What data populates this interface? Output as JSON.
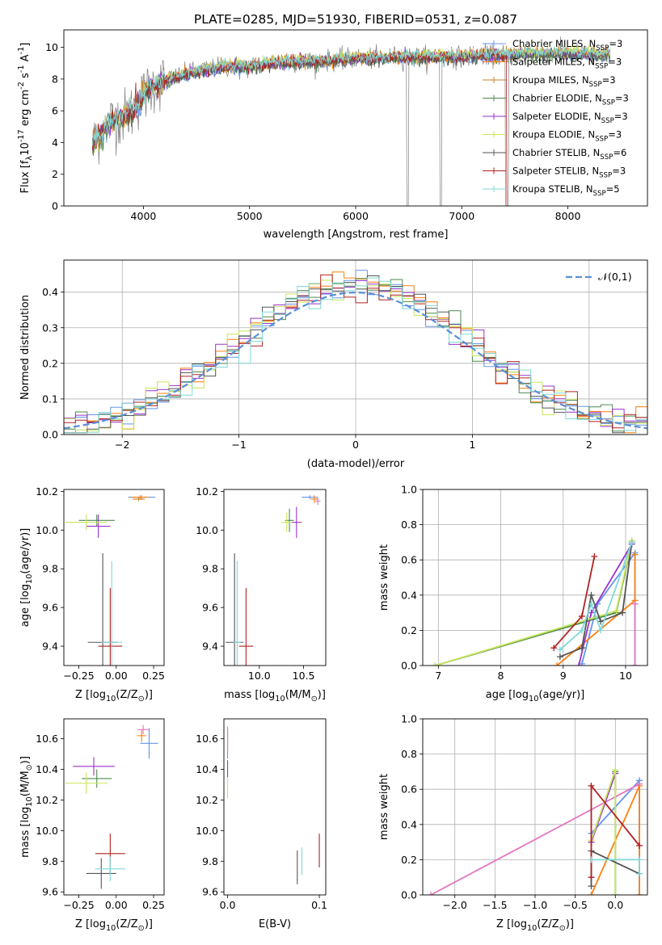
{
  "figure": {
    "title": "PLATE=0285, MJD=51930, FIBERID=0531, z=0.087"
  },
  "colors": {
    "chabrier_miles": "#6495ed",
    "salpeter_miles": "#ff7f0e",
    "kroupa_miles": "#c8812a",
    "chabrier_elodie": "#4f8a4f",
    "salpeter_elodie": "#9932cc",
    "kroupa_elodie": "#c8e65a",
    "chabrier_stelib": "#555555",
    "salpeter_stelib": "#b22222",
    "kroupa_stelib": "#7fd8d8",
    "data": "#808080",
    "gaussian": "#5b8fd6",
    "pink": "#e377c2"
  },
  "chart_data": [
    {
      "id": "spectrum",
      "type": "line",
      "xlabel": "wavelength [Angstrom, rest frame]",
      "ylabel": "Flux [f$_\\lambda$10$^{-17}$ erg cm$^{-2}$ s$^{-1}$ A$^{-1}$]",
      "xlim": [
        3250,
        8750
      ],
      "ylim": [
        0,
        11.1
      ],
      "xticks": [
        "4000",
        "5000",
        "6000",
        "7000",
        "8000"
      ],
      "yticks": [
        "0",
        "2",
        "4",
        "6",
        "8",
        "10"
      ],
      "legend": {
        "placement": "top-right",
        "entries": [
          "Chabrier MILES, N$_{SSP}$=3",
          "Salpeter MILES, N$_{SSP}$=3",
          "Kroupa MILES, N$_{SSP}$=3",
          "Chabrier ELODIE, N$_{SSP}$=3",
          "Salpeter ELODIE, N$_{SSP}$=3",
          "Kroupa ELODIE, N$_{SSP}$=3",
          "Chabrier STELIB, N$_{SSP}$=6",
          "Salpeter STELIB, N$_{SSP}$=3",
          "Kroupa STELIB, N$_{SSP}$=5"
        ]
      },
      "continuum": {
        "x": [
          3500,
          3600,
          3700,
          3800,
          3900,
          4000,
          4100,
          4200,
          4400,
          4600,
          4800,
          5000,
          5200,
          5400,
          5600,
          5800,
          6000,
          6200,
          6400,
          6600,
          6800,
          7000,
          7200,
          7400,
          7600,
          7800,
          8000,
          8200,
          8400
        ],
        "y": [
          3.7,
          4.6,
          5.4,
          5.6,
          6.0,
          7.0,
          7.6,
          7.9,
          8.3,
          8.6,
          8.8,
          8.8,
          9.0,
          9.1,
          9.1,
          9.2,
          9.3,
          9.3,
          9.4,
          9.4,
          9.4,
          9.4,
          9.5,
          9.5,
          9.6,
          9.6,
          9.6,
          9.6,
          9.5
        ]
      }
    },
    {
      "id": "residuals",
      "type": "histogram",
      "xlabel": "(data-model)/error",
      "ylabel": "Normed distribution",
      "xlim": [
        -2.5,
        2.5
      ],
      "ylim": [
        0,
        0.49
      ],
      "xticks": [
        "−2",
        "−1",
        "0",
        "1",
        "2"
      ],
      "yticks": [
        "0.0",
        "0.1",
        "0.2",
        "0.3",
        "0.4"
      ],
      "legend": {
        "placement": "top-right",
        "entries": [
          "$\\mathcal{N}(0,1)$"
        ]
      },
      "bin_width": 0.1,
      "grid": true
    },
    {
      "id": "age-vs-Z",
      "type": "scatter",
      "xlabel": "Z [log$_{10}$(Z/Z$_\\odot$)]",
      "ylabel": "age  [log$_{10}$(age/yr)]",
      "xlim": [
        -0.35,
        0.32
      ],
      "ylim": [
        9.3,
        10.21
      ],
      "xticks": [
        "−0.25",
        "0.00",
        "0.25"
      ],
      "yticks": [
        "9.4",
        "9.6",
        "9.8",
        "10.0",
        "10.2"
      ],
      "points": [
        {
          "x": 0.17,
          "y": 10.17,
          "ex": 0.09,
          "ey": 0.01,
          "c": "chabrier_miles"
        },
        {
          "x": 0.16,
          "y": 10.17,
          "ex": 0.06,
          "ey": 0.01,
          "c": "salpeter_miles"
        },
        {
          "x": 0.15,
          "y": 10.16,
          "ex": 0.04,
          "ey": 0.01,
          "c": "kroupa_miles"
        },
        {
          "x": -0.13,
          "y": 10.05,
          "ex": 0.12,
          "ey": 0.03,
          "c": "chabrier_elodie"
        },
        {
          "x": -0.12,
          "y": 10.02,
          "ex": 0.08,
          "ey": 0.06,
          "c": "salpeter_elodie"
        },
        {
          "x": -0.2,
          "y": 10.04,
          "ex": 0.14,
          "ey": 0.04,
          "c": "kroupa_elodie"
        },
        {
          "x": -0.09,
          "y": 9.42,
          "ex": 0.1,
          "ey": 0.46,
          "c": "chabrier_stelib"
        },
        {
          "x": -0.04,
          "y": 9.4,
          "ex": 0.08,
          "ey": 0.3,
          "c": "salpeter_stelib"
        },
        {
          "x": -0.03,
          "y": 9.42,
          "ex": 0.07,
          "ey": 0.42,
          "c": "kroupa_stelib"
        }
      ]
    },
    {
      "id": "age-vs-mass",
      "type": "scatter",
      "xlabel": "mass [log$_{10}$(M/M$_\\odot$)]",
      "ylabel": "",
      "xlim": [
        9.6,
        10.75
      ],
      "ylim": [
        9.3,
        10.21
      ],
      "xticks": [
        "10.0",
        "10.5"
      ],
      "yticks": [
        "9.4",
        "9.6",
        "9.8",
        "10.0",
        "10.2"
      ],
      "points": [
        {
          "x": 10.57,
          "y": 10.17,
          "ex": 0.09,
          "ey": 0.01,
          "c": "chabrier_miles"
        },
        {
          "x": 10.62,
          "y": 10.16,
          "ex": 0.04,
          "ey": 0.02,
          "c": "salpeter_miles"
        },
        {
          "x": 10.66,
          "y": 10.15,
          "ex": 0.03,
          "ey": 0.02,
          "c": "pink"
        },
        {
          "x": 10.34,
          "y": 10.05,
          "ex": 0.05,
          "ey": 0.06,
          "c": "chabrier_elodie"
        },
        {
          "x": 10.42,
          "y": 10.04,
          "ex": 0.06,
          "ey": 0.08,
          "c": "salpeter_elodie"
        },
        {
          "x": 10.31,
          "y": 10.04,
          "ex": 0.06,
          "ey": 0.05,
          "c": "kroupa_elodie"
        },
        {
          "x": 9.72,
          "y": 9.42,
          "ex": 0.1,
          "ey": 0.46,
          "c": "chabrier_stelib"
        },
        {
          "x": 9.85,
          "y": 9.4,
          "ex": 0.08,
          "ey": 0.3,
          "c": "salpeter_stelib"
        },
        {
          "x": 9.75,
          "y": 9.42,
          "ex": 0.04,
          "ey": 0.42,
          "c": "kroupa_stelib"
        }
      ]
    },
    {
      "id": "weight-vs-age",
      "type": "line",
      "xlabel": "age  [log$_{10}$(age/yr)]",
      "ylabel": "mass weight",
      "xlim": [
        6.75,
        10.35
      ],
      "ylim": [
        0,
        1
      ],
      "xticks": [
        "7",
        "8",
        "9",
        "10"
      ],
      "yticks": [
        "0.0",
        "0.2",
        "0.4",
        "0.6",
        "0.8",
        "1.0"
      ],
      "grid": true,
      "series": [
        {
          "c": "chabrier_miles",
          "x": [
            9.3,
            9.55,
            10.15,
            10.15
          ],
          "y": [
            0.01,
            0.35,
            0.64,
            0.0
          ]
        },
        {
          "c": "salpeter_miles",
          "x": [
            8.9,
            10.15,
            10.15
          ],
          "y": [
            0.0,
            0.37,
            0.63
          ]
        },
        {
          "c": "pink",
          "x": [
            10.15,
            10.15
          ],
          "y": [
            0.0,
            0.35
          ]
        },
        {
          "c": "chabrier_elodie",
          "x": [
            6.95,
            9.85,
            10.1
          ],
          "y": [
            0.0,
            0.3,
            0.7
          ]
        },
        {
          "c": "salpeter_elodie",
          "x": [
            9.25,
            9.45,
            10.1
          ],
          "y": [
            0.0,
            0.3,
            0.69
          ]
        },
        {
          "c": "kroupa_elodie",
          "x": [
            6.95,
            9.85,
            10.1
          ],
          "y": [
            0.0,
            0.31,
            0.71
          ]
        },
        {
          "c": "chabrier_stelib",
          "x": [
            8.95,
            9.3,
            9.45,
            9.6,
            9.95,
            10.1
          ],
          "y": [
            0.05,
            0.1,
            0.4,
            0.25,
            0.3,
            0.7
          ]
        },
        {
          "c": "salpeter_stelib",
          "x": [
            8.85,
            9.3,
            9.5
          ],
          "y": [
            0.1,
            0.28,
            0.62
          ]
        },
        {
          "c": "kroupa_stelib",
          "x": [
            8.95,
            9.3,
            9.45,
            9.6,
            10.1
          ],
          "y": [
            0.09,
            0.2,
            0.35,
            0.2,
            0.7
          ]
        }
      ]
    },
    {
      "id": "mass-vs-Z",
      "type": "scatter",
      "xlabel": "Z [log$_{10}$(Z/Z$_\\odot$)]",
      "ylabel": "mass [log$_{10}$(M/M$_\\odot$)]",
      "xlim": [
        -0.35,
        0.32
      ],
      "ylim": [
        9.58,
        10.73
      ],
      "xticks": [
        "−0.25",
        "0.00",
        "0.25"
      ],
      "yticks": [
        "9.6",
        "9.8",
        "10.0",
        "10.2",
        "10.4",
        "10.6"
      ],
      "points": [
        {
          "x": 0.22,
          "y": 10.57,
          "ex": 0.06,
          "ey": 0.1,
          "c": "chabrier_miles"
        },
        {
          "x": 0.17,
          "y": 10.62,
          "ex": 0.03,
          "ey": 0.04,
          "c": "salpeter_miles"
        },
        {
          "x": 0.18,
          "y": 10.66,
          "ex": 0.04,
          "ey": 0.03,
          "c": "pink"
        },
        {
          "x": -0.13,
          "y": 10.34,
          "ex": 0.1,
          "ey": 0.06,
          "c": "chabrier_elodie"
        },
        {
          "x": -0.15,
          "y": 10.42,
          "ex": 0.14,
          "ey": 0.06,
          "c": "salpeter_elodie"
        },
        {
          "x": -0.2,
          "y": 10.31,
          "ex": 0.14,
          "ey": 0.07,
          "c": "kroupa_elodie"
        },
        {
          "x": -0.1,
          "y": 9.72,
          "ex": 0.1,
          "ey": 0.1,
          "c": "chabrier_stelib"
        },
        {
          "x": -0.04,
          "y": 9.85,
          "ex": 0.1,
          "ey": 0.13,
          "c": "salpeter_stelib"
        },
        {
          "x": -0.04,
          "y": 9.75,
          "ex": 0.1,
          "ey": 0.08,
          "c": "kroupa_stelib"
        }
      ]
    },
    {
      "id": "mass-vs-ebv",
      "type": "scatter",
      "xlabel": "E(B-V)",
      "ylabel": "",
      "xlim": [
        -0.004,
        0.107
      ],
      "ylim": [
        9.58,
        10.73
      ],
      "xticks": [
        "0.0",
        "0.1"
      ],
      "yticks": [
        "9.6",
        "9.8",
        "10.0",
        "10.2",
        "10.4",
        "10.6"
      ],
      "points": [
        {
          "x": 0.0,
          "y": 10.57,
          "ex": 0.0,
          "ey": 0.1,
          "c": "chabrier_miles"
        },
        {
          "x": 0.0,
          "y": 10.58,
          "ex": 0.0,
          "ey": 0.06,
          "c": "salpeter_miles"
        },
        {
          "x": 0.0,
          "y": 10.6,
          "ex": 0.0,
          "ey": 0.08,
          "c": "pink"
        },
        {
          "x": 0.0,
          "y": 10.4,
          "ex": 0.0,
          "ey": 0.06,
          "c": "salpeter_elodie"
        },
        {
          "x": 0.0,
          "y": 10.28,
          "ex": 0.0,
          "ey": 0.07,
          "c": "kroupa_elodie"
        },
        {
          "x": 0.076,
          "y": 9.76,
          "ex": 0.0,
          "ey": 0.11,
          "c": "chabrier_stelib"
        },
        {
          "x": 0.1,
          "y": 9.87,
          "ex": 0.0,
          "ey": 0.11,
          "c": "salpeter_stelib"
        },
        {
          "x": 0.081,
          "y": 9.8,
          "ex": 0.0,
          "ey": 0.09,
          "c": "kroupa_stelib"
        }
      ]
    },
    {
      "id": "weight-vs-Z",
      "type": "line",
      "xlabel": "Z [log$_{10}$(Z/Z$_\\odot$)]",
      "ylabel": "mass weight",
      "xlim": [
        -2.4,
        0.4
      ],
      "ylim": [
        0,
        1
      ],
      "xticks": [
        "−2.0",
        "−1.5",
        "−1.0",
        "−0.5",
        "0.0"
      ],
      "yticks": [
        "0.0",
        "0.2",
        "0.4",
        "0.6",
        "0.8",
        "1.0"
      ],
      "grid": true,
      "series": [
        {
          "c": "chabrier_miles",
          "x": [
            -0.3,
            0.3,
            0.3
          ],
          "y": [
            0.35,
            0.65,
            0.0
          ]
        },
        {
          "c": "salpeter_miles",
          "x": [
            -0.3,
            0.3,
            0.3
          ],
          "y": [
            0.0,
            0.62,
            0.0
          ]
        },
        {
          "c": "pink",
          "x": [
            -2.3,
            0.3
          ],
          "y": [
            0.0,
            0.63
          ]
        },
        {
          "c": "chabrier_elodie",
          "x": [
            -0.3,
            0.0,
            0.0
          ],
          "y": [
            0.3,
            0.7,
            0.0
          ]
        },
        {
          "c": "salpeter_elodie",
          "x": [
            -0.3,
            0.0
          ],
          "y": [
            0.3,
            0.69
          ]
        },
        {
          "c": "kroupa_elodie",
          "x": [
            -0.3,
            0.0,
            0.0
          ],
          "y": [
            0.31,
            0.71,
            0.0
          ]
        },
        {
          "c": "chabrier_stelib",
          "x": [
            -0.3,
            -0.3,
            0.3
          ],
          "y": [
            0.05,
            0.25,
            0.12
          ]
        },
        {
          "c": "salpeter_stelib",
          "x": [
            -0.3,
            -0.3,
            0.3
          ],
          "y": [
            0.1,
            0.62,
            0.28
          ]
        },
        {
          "c": "kroupa_stelib",
          "x": [
            -0.3,
            0.3,
            0.3
          ],
          "y": [
            0.2,
            0.2,
            0.12
          ]
        }
      ]
    }
  ]
}
